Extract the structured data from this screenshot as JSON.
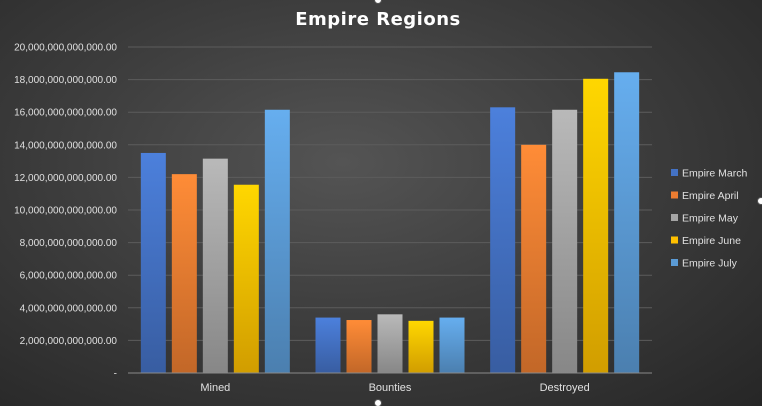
{
  "chart_data": {
    "type": "bar",
    "title": "Empire Regions",
    "categories": [
      "Mined",
      "Bounties",
      "Destroyed"
    ],
    "series": [
      {
        "name": "Empire March",
        "values": [
          13500000000000,
          3400000000000,
          16300000000000
        ],
        "color": "#4472c4"
      },
      {
        "name": "Empire April",
        "values": [
          12200000000000,
          3250000000000,
          14000000000000
        ],
        "color": "#ed7d31"
      },
      {
        "name": "Empire May",
        "values": [
          13150000000000,
          3600000000000,
          16150000000000
        ],
        "color": "#a5a5a5"
      },
      {
        "name": "Empire June",
        "values": [
          11550000000000,
          3200000000000,
          18050000000000
        ],
        "color": "#ffc000"
      },
      {
        "name": "Empire July",
        "values": [
          16150000000000,
          3400000000000,
          18450000000000
        ],
        "color": "#5b9bd5"
      }
    ],
    "ylim": [
      0,
      20000000000000
    ],
    "yticks": [
      0,
      2000000000000,
      4000000000000,
      6000000000000,
      8000000000000,
      10000000000000,
      12000000000000,
      14000000000000,
      16000000000000,
      18000000000000,
      20000000000000
    ],
    "ytick_labels": [
      "-",
      "2,000,000,000,000.00",
      "4,000,000,000,000.00",
      "6,000,000,000,000.00",
      "8,000,000,000,000.00",
      "10,000,000,000,000.00",
      "12,000,000,000,000.00",
      "14,000,000,000,000.00",
      "16,000,000,000,000.00",
      "18,000,000,000,000.00",
      "20,000,000,000,000.00"
    ],
    "xlabel": "",
    "ylabel": "",
    "grid": true,
    "legend_position": "right"
  }
}
